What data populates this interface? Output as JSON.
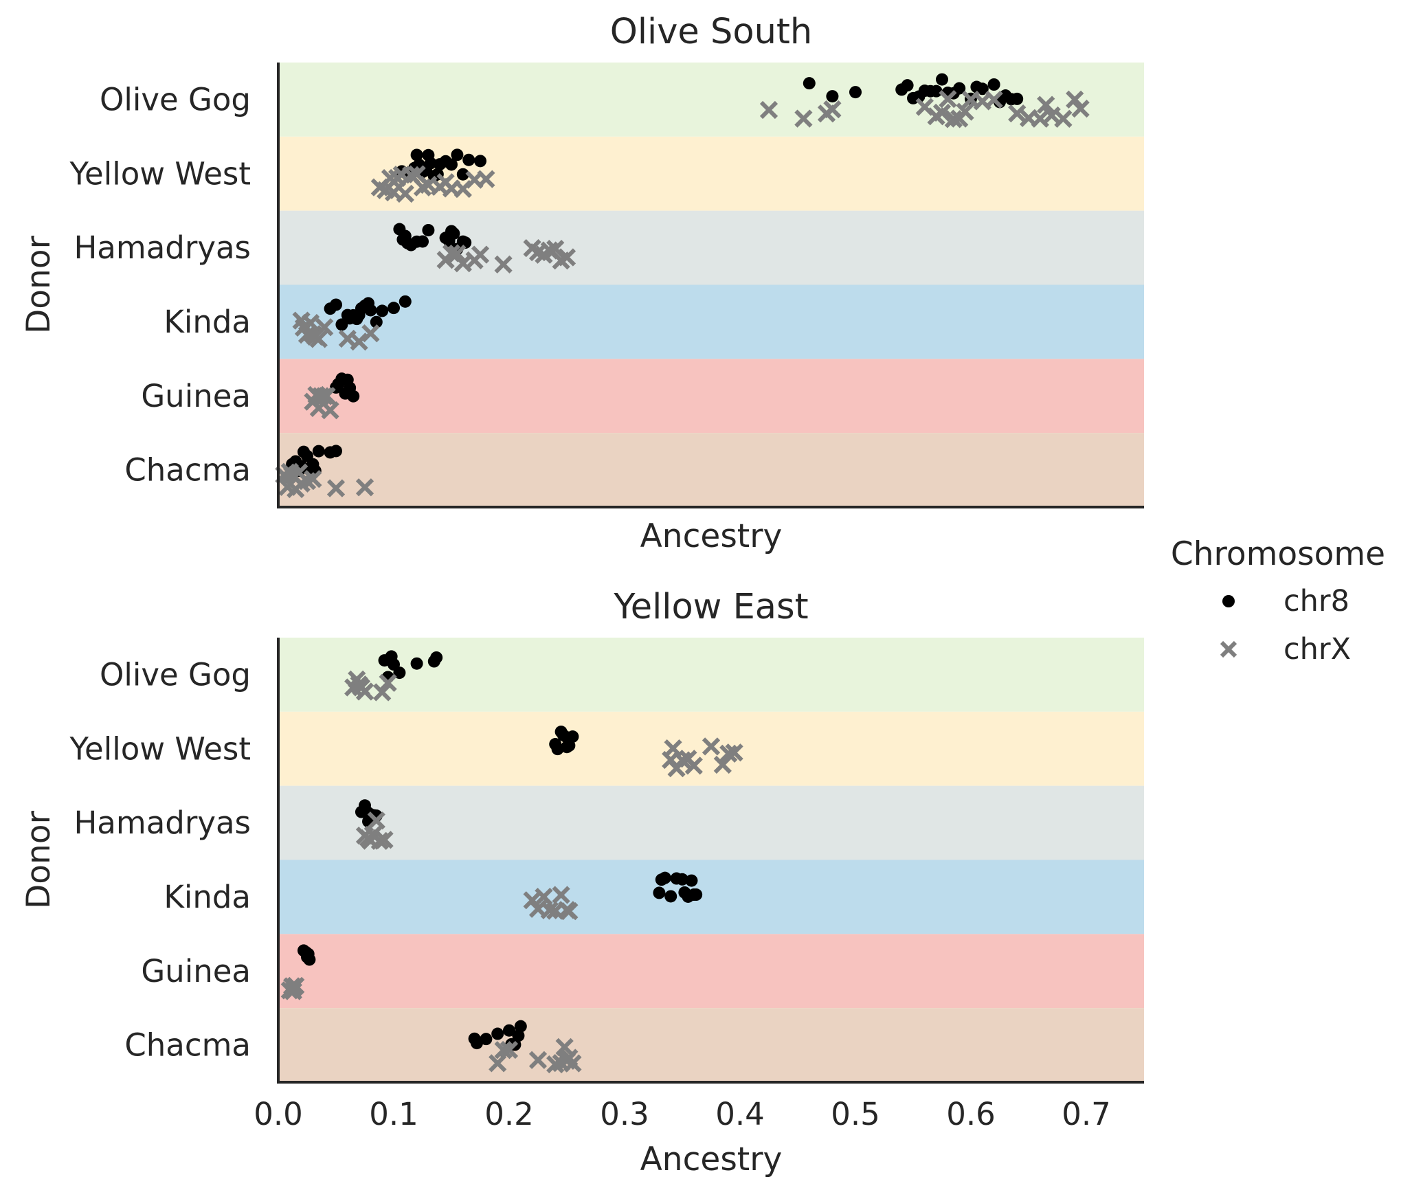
{
  "chart_data": {
    "type": "scatter",
    "legend": {
      "title": "Chromosome",
      "position": "right",
      "entries": [
        {
          "name": "chr8",
          "marker": "circle",
          "color": "#000000"
        },
        {
          "name": "chrX",
          "marker": "x",
          "color": "#7f7f7f"
        }
      ]
    },
    "donors": [
      "Olive Gog",
      "Yellow West",
      "Hamadryas",
      "Kinda",
      "Guinea",
      "Chacma"
    ],
    "band_colors": [
      "#e8f4dc",
      "#fef0d0",
      "#e0e6e5",
      "#bddcec",
      "#f7c3bf",
      "#ead3c2"
    ],
    "xlim": [
      0.0,
      0.75
    ],
    "xticks": [
      "0.0",
      "0.1",
      "0.2",
      "0.3",
      "0.4",
      "0.5",
      "0.6",
      "0.7"
    ],
    "grid": false,
    "panels": [
      {
        "title": "Olive South",
        "xlabel": "Ancestry",
        "ylabel": "Donor",
        "show_xticks": false,
        "series": [
          {
            "name": "chr8",
            "points": {
              "Olive Gog": [
                0.46,
                0.48,
                0.5,
                0.54,
                0.545,
                0.55,
                0.555,
                0.56,
                0.565,
                0.57,
                0.575,
                0.58,
                0.585,
                0.59,
                0.6,
                0.605,
                0.61,
                0.62,
                0.625,
                0.63,
                0.635,
                0.64
              ],
              "Yellow West": [
                0.107,
                0.115,
                0.118,
                0.12,
                0.122,
                0.125,
                0.128,
                0.13,
                0.132,
                0.135,
                0.138,
                0.14,
                0.145,
                0.15,
                0.155,
                0.16,
                0.165,
                0.175
              ],
              "Hamadryas": [
                0.105,
                0.108,
                0.11,
                0.112,
                0.115,
                0.12,
                0.125,
                0.13,
                0.145,
                0.148,
                0.15,
                0.152,
                0.155,
                0.16,
                0.162
              ],
              "Kinda": [
                0.045,
                0.05,
                0.055,
                0.06,
                0.062,
                0.065,
                0.068,
                0.07,
                0.072,
                0.075,
                0.078,
                0.08,
                0.085,
                0.09,
                0.1,
                0.11
              ],
              "Guinea": [
                0.05,
                0.052,
                0.055,
                0.058,
                0.06,
                0.062,
                0.065
              ],
              "Chacma": [
                0.012,
                0.015,
                0.018,
                0.02,
                0.022,
                0.025,
                0.028,
                0.03,
                0.032,
                0.035,
                0.045,
                0.05
              ]
            }
          },
          {
            "name": "chrX",
            "points": {
              "Olive Gog": [
                0.425,
                0.455,
                0.475,
                0.48,
                0.56,
                0.57,
                0.575,
                0.58,
                0.585,
                0.59,
                0.595,
                0.6,
                0.61,
                0.62,
                0.64,
                0.65,
                0.66,
                0.665,
                0.67,
                0.68,
                0.69,
                0.695
              ],
              "Yellow West": [
                0.088,
                0.093,
                0.097,
                0.1,
                0.103,
                0.107,
                0.11,
                0.115,
                0.12,
                0.125,
                0.13,
                0.14,
                0.145,
                0.15,
                0.16,
                0.17,
                0.18
              ],
              "Hamadryas": [
                0.145,
                0.15,
                0.155,
                0.16,
                0.17,
                0.175,
                0.195,
                0.22,
                0.225,
                0.23,
                0.235,
                0.24,
                0.245,
                0.25
              ],
              "Kinda": [
                0.02,
                0.022,
                0.025,
                0.028,
                0.03,
                0.032,
                0.035,
                0.04,
                0.06,
                0.07,
                0.08
              ],
              "Guinea": [
                0.03,
                0.033,
                0.035,
                0.037,
                0.04,
                0.042,
                0.045
              ],
              "Chacma": [
                0.005,
                0.008,
                0.01,
                0.012,
                0.015,
                0.018,
                0.02,
                0.025,
                0.03,
                0.05,
                0.075
              ]
            }
          }
        ]
      },
      {
        "title": "Yellow East",
        "xlabel": "Ancestry",
        "ylabel": "Donor",
        "show_xticks": true,
        "series": [
          {
            "name": "chr8",
            "points": {
              "Olive Gog": [
                0.092,
                0.095,
                0.098,
                0.1,
                0.105,
                0.12,
                0.135,
                0.137
              ],
              "Yellow West": [
                0.24,
                0.242,
                0.245,
                0.247,
                0.25,
                0.252,
                0.255,
                0.25
              ],
              "Hamadryas": [
                0.072,
                0.075,
                0.078,
                0.08,
                0.083,
                0.085,
                0.078
              ],
              "Kinda": [
                0.33,
                0.332,
                0.335,
                0.34,
                0.345,
                0.35,
                0.352,
                0.355,
                0.358,
                0.36,
                0.362
              ],
              "Guinea": [
                0.022,
                0.024,
                0.025,
                0.026,
                0.027
              ],
              "Chacma": [
                0.17,
                0.172,
                0.18,
                0.19,
                0.2,
                0.202,
                0.205,
                0.208,
                0.21
              ]
            }
          },
          {
            "name": "chrX",
            "points": {
              "Olive Gog": [
                0.065,
                0.068,
                0.07,
                0.072,
                0.075,
                0.09,
                0.095
              ],
              "Yellow West": [
                0.34,
                0.342,
                0.345,
                0.35,
                0.355,
                0.36,
                0.375,
                0.385,
                0.39,
                0.395
              ],
              "Hamadryas": [
                0.075,
                0.078,
                0.08,
                0.082,
                0.085,
                0.088,
                0.092
              ],
              "Kinda": [
                0.22,
                0.225,
                0.23,
                0.235,
                0.24,
                0.245,
                0.25,
                0.252
              ],
              "Guinea": [
                0.01,
                0.012,
                0.013,
                0.014,
                0.015
              ],
              "Chacma": [
                0.19,
                0.195,
                0.2,
                0.225,
                0.24,
                0.245,
                0.248,
                0.25,
                0.252,
                0.255
              ]
            }
          }
        ]
      }
    ]
  }
}
